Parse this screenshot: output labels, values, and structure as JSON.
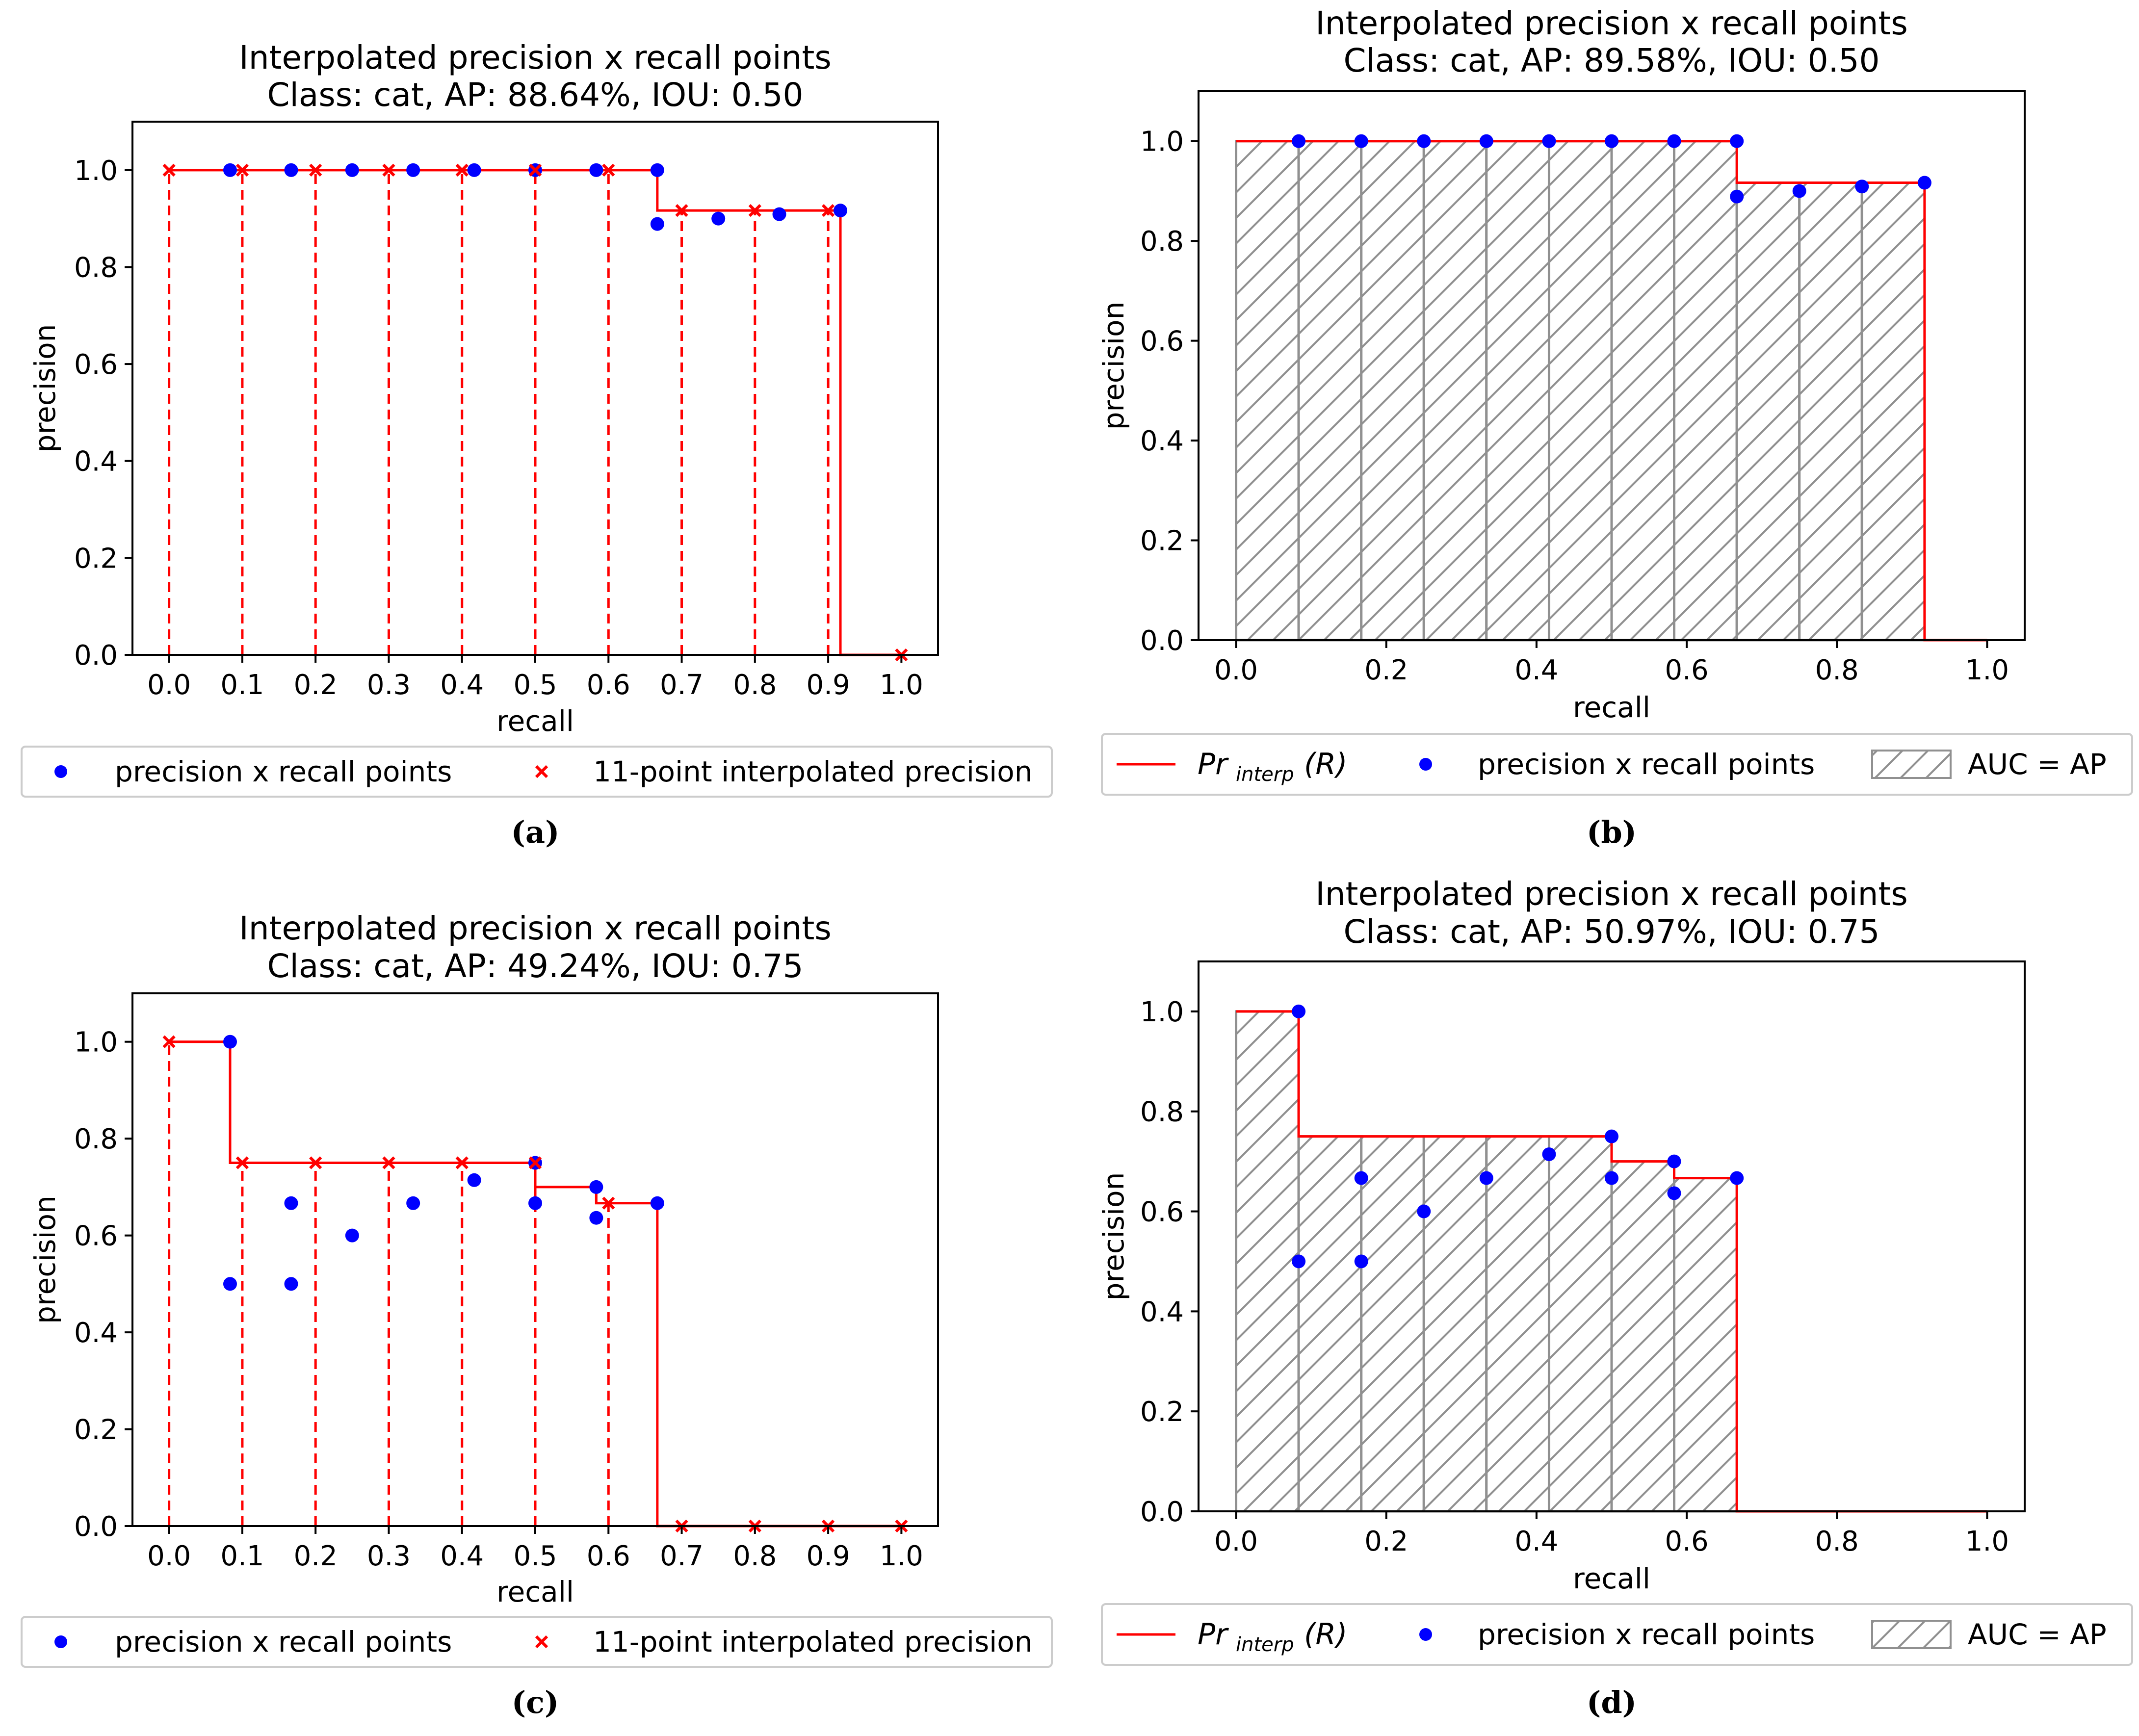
{
  "figure": {
    "captions": [
      "(a)",
      "(b)",
      "(c)",
      "(d)"
    ]
  },
  "colors": {
    "curve": "#ff0000",
    "points": "#0000ff",
    "hatch": "#909090",
    "axis": "#000000"
  },
  "chart_data": [
    {
      "panel": "a",
      "type": "line",
      "title": "Interpolated precision x recall points",
      "subtitle": "Class: cat, AP: 88.64%, IOU: 0.50",
      "xlabel": "recall",
      "ylabel": "precision",
      "xlim": [
        -0.05,
        1.05
      ],
      "ylim": [
        0.0,
        1.1
      ],
      "xticks": [
        0.0,
        0.1,
        0.2,
        0.3,
        0.4,
        0.5,
        0.6,
        0.7,
        0.8,
        0.9,
        1.0
      ],
      "xtick_labels": [
        "0.0",
        "0.1",
        "0.2",
        "0.3",
        "0.4",
        "0.5",
        "0.6",
        "0.7",
        "0.8",
        "0.9",
        "1.0"
      ],
      "yticks": [
        0.0,
        0.2,
        0.4,
        0.6,
        0.8,
        1.0
      ],
      "ytick_labels": [
        "0.0",
        "0.2",
        "0.4",
        "0.6",
        "0.8",
        "1.0"
      ],
      "legend": [
        "precision x recall points",
        "11-point interpolated precision"
      ],
      "legend_position": "bottom",
      "points": {
        "recall": [
          0.0833,
          0.1667,
          0.25,
          0.3333,
          0.4167,
          0.5,
          0.5833,
          0.6667,
          0.6667,
          0.75,
          0.8333,
          0.9167
        ],
        "precision": [
          1.0,
          1.0,
          1.0,
          1.0,
          1.0,
          1.0,
          1.0,
          1.0,
          0.8889,
          0.9,
          0.9091,
          0.9167
        ]
      },
      "interp_curve": {
        "recall": [
          0.0,
          0.6667,
          0.6667,
          0.9167,
          0.9167,
          1.0
        ],
        "precision": [
          1.0,
          1.0,
          0.9167,
          0.9167,
          0.0,
          0.0
        ]
      },
      "eleven_point": {
        "recall": [
          0.0,
          0.1,
          0.2,
          0.3,
          0.4,
          0.5,
          0.6,
          0.7,
          0.8,
          0.9,
          1.0
        ],
        "precision": [
          1.0,
          1.0,
          1.0,
          1.0,
          1.0,
          1.0,
          1.0,
          0.9167,
          0.9167,
          0.9167,
          0.0
        ]
      }
    },
    {
      "panel": "b",
      "type": "area",
      "title": "Interpolated precision x recall points",
      "subtitle": "Class: cat, AP: 89.58%, IOU: 0.50",
      "xlabel": "recall",
      "ylabel": "precision",
      "xlim": [
        -0.05,
        1.05
      ],
      "ylim": [
        0.0,
        1.1
      ],
      "xticks": [
        0.0,
        0.2,
        0.4,
        0.6,
        0.8,
        1.0
      ],
      "xtick_labels": [
        "0.0",
        "0.2",
        "0.4",
        "0.6",
        "0.8",
        "1.0"
      ],
      "yticks": [
        0.0,
        0.2,
        0.4,
        0.6,
        0.8,
        1.0
      ],
      "ytick_labels": [
        "0.0",
        "0.2",
        "0.4",
        "0.6",
        "0.8",
        "1.0"
      ],
      "legend": [
        "Pr",
        "interp",
        "(R)",
        "precision x recall points",
        "AUC = AP"
      ],
      "legend_position": "bottom",
      "points": {
        "recall": [
          0.0833,
          0.1667,
          0.25,
          0.3333,
          0.4167,
          0.5,
          0.5833,
          0.6667,
          0.6667,
          0.75,
          0.8333,
          0.9167
        ],
        "precision": [
          1.0,
          1.0,
          1.0,
          1.0,
          1.0,
          1.0,
          1.0,
          1.0,
          0.8889,
          0.9,
          0.9091,
          0.9167
        ]
      },
      "interp_curve": {
        "recall": [
          0.0,
          0.6667,
          0.6667,
          0.9167,
          0.9167,
          1.0
        ],
        "precision": [
          1.0,
          1.0,
          0.9167,
          0.9167,
          0.0,
          0.0
        ]
      },
      "area_bands": [
        {
          "x0": 0.0,
          "x1": 0.0833,
          "h": 1.0
        },
        {
          "x0": 0.0833,
          "x1": 0.1667,
          "h": 1.0
        },
        {
          "x0": 0.1667,
          "x1": 0.25,
          "h": 1.0
        },
        {
          "x0": 0.25,
          "x1": 0.3333,
          "h": 1.0
        },
        {
          "x0": 0.3333,
          "x1": 0.4167,
          "h": 1.0
        },
        {
          "x0": 0.4167,
          "x1": 0.5,
          "h": 1.0
        },
        {
          "x0": 0.5,
          "x1": 0.5833,
          "h": 1.0
        },
        {
          "x0": 0.5833,
          "x1": 0.6667,
          "h": 1.0
        },
        {
          "x0": 0.6667,
          "x1": 0.75,
          "h": 0.9167
        },
        {
          "x0": 0.75,
          "x1": 0.8333,
          "h": 0.9167
        },
        {
          "x0": 0.8333,
          "x1": 0.9167,
          "h": 0.9167
        }
      ]
    },
    {
      "panel": "c",
      "type": "line",
      "title": "Interpolated precision x recall points",
      "subtitle": "Class: cat, AP: 49.24%, IOU: 0.75",
      "xlabel": "recall",
      "ylabel": "precision",
      "xlim": [
        -0.05,
        1.05
      ],
      "ylim": [
        0.0,
        1.1
      ],
      "xticks": [
        0.0,
        0.1,
        0.2,
        0.3,
        0.4,
        0.5,
        0.6,
        0.7,
        0.8,
        0.9,
        1.0
      ],
      "xtick_labels": [
        "0.0",
        "0.1",
        "0.2",
        "0.3",
        "0.4",
        "0.5",
        "0.6",
        "0.7",
        "0.8",
        "0.9",
        "1.0"
      ],
      "yticks": [
        0.0,
        0.2,
        0.4,
        0.6,
        0.8,
        1.0
      ],
      "ytick_labels": [
        "0.0",
        "0.2",
        "0.4",
        "0.6",
        "0.8",
        "1.0"
      ],
      "legend": [
        "precision x recall points",
        "11-point interpolated precision"
      ],
      "legend_position": "bottom",
      "points": {
        "recall": [
          0.0833,
          0.0833,
          0.1667,
          0.1667,
          0.25,
          0.3333,
          0.4167,
          0.5,
          0.5,
          0.5833,
          0.5833,
          0.6667
        ],
        "precision": [
          1.0,
          0.5,
          0.6667,
          0.5,
          0.6,
          0.6667,
          0.7143,
          0.75,
          0.6667,
          0.7,
          0.6364,
          0.6667
        ]
      },
      "interp_curve": {
        "recall": [
          0.0,
          0.0833,
          0.0833,
          0.5,
          0.5,
          0.5833,
          0.5833,
          0.6667,
          0.6667,
          1.0
        ],
        "precision": [
          1.0,
          1.0,
          0.75,
          0.75,
          0.7,
          0.7,
          0.6667,
          0.6667,
          0.0,
          0.0
        ]
      },
      "eleven_point": {
        "recall": [
          0.0,
          0.1,
          0.2,
          0.3,
          0.4,
          0.5,
          0.6,
          0.7,
          0.8,
          0.9,
          1.0
        ],
        "precision": [
          1.0,
          0.75,
          0.75,
          0.75,
          0.75,
          0.75,
          0.6667,
          0.0,
          0.0,
          0.0,
          0.0
        ]
      }
    },
    {
      "panel": "d",
      "type": "area",
      "title": "Interpolated precision x recall points",
      "subtitle": "Class: cat, AP: 50.97%, IOU: 0.75",
      "xlabel": "recall",
      "ylabel": "precision",
      "xlim": [
        -0.05,
        1.05
      ],
      "ylim": [
        0.0,
        1.1
      ],
      "xticks": [
        0.0,
        0.2,
        0.4,
        0.6,
        0.8,
        1.0
      ],
      "xtick_labels": [
        "0.0",
        "0.2",
        "0.4",
        "0.6",
        "0.8",
        "1.0"
      ],
      "yticks": [
        0.0,
        0.2,
        0.4,
        0.6,
        0.8,
        1.0
      ],
      "ytick_labels": [
        "0.0",
        "0.2",
        "0.4",
        "0.6",
        "0.8",
        "1.0"
      ],
      "legend": [
        "Pr",
        "interp",
        "(R)",
        "precision x recall points",
        "AUC = AP"
      ],
      "legend_position": "bottom",
      "points": {
        "recall": [
          0.0833,
          0.0833,
          0.1667,
          0.1667,
          0.25,
          0.3333,
          0.4167,
          0.5,
          0.5,
          0.5833,
          0.5833,
          0.6667
        ],
        "precision": [
          1.0,
          0.5,
          0.6667,
          0.5,
          0.6,
          0.6667,
          0.7143,
          0.75,
          0.6667,
          0.7,
          0.6364,
          0.6667
        ]
      },
      "interp_curve": {
        "recall": [
          0.0,
          0.0833,
          0.0833,
          0.5,
          0.5,
          0.5833,
          0.5833,
          0.6667,
          0.6667,
          1.0
        ],
        "precision": [
          1.0,
          1.0,
          0.75,
          0.75,
          0.7,
          0.7,
          0.6667,
          0.6667,
          0.0,
          0.0
        ]
      },
      "area_bands": [
        {
          "x0": 0.0,
          "x1": 0.0833,
          "h": 1.0
        },
        {
          "x0": 0.0833,
          "x1": 0.1667,
          "h": 0.75
        },
        {
          "x0": 0.1667,
          "x1": 0.25,
          "h": 0.75
        },
        {
          "x0": 0.25,
          "x1": 0.3333,
          "h": 0.75
        },
        {
          "x0": 0.3333,
          "x1": 0.4167,
          "h": 0.75
        },
        {
          "x0": 0.4167,
          "x1": 0.5,
          "h": 0.75
        },
        {
          "x0": 0.5,
          "x1": 0.5833,
          "h": 0.7
        },
        {
          "x0": 0.5833,
          "x1": 0.6667,
          "h": 0.6667
        }
      ]
    }
  ]
}
